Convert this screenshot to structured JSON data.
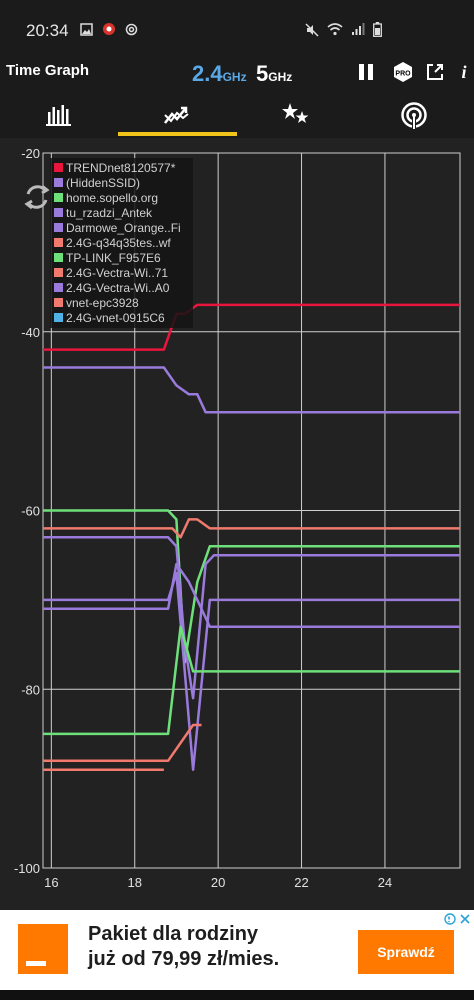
{
  "status": {
    "time": "20:34"
  },
  "app": {
    "title": "Time Graph",
    "band_24": "2.4",
    "band_5": "5",
    "ghz": "GHz"
  },
  "tabs": [
    {
      "name": "channel-graph",
      "icon": "bar-chart-icon"
    },
    {
      "name": "time-graph",
      "icon": "trend-line-icon"
    },
    {
      "name": "channel-rating",
      "icon": "stars-icon"
    },
    {
      "name": "signal-meter",
      "icon": "wifi-signal-icon"
    }
  ],
  "chart_data": {
    "type": "line",
    "xlim": [
      15.8,
      25.8
    ],
    "ylim": [
      -100,
      -20
    ],
    "x_ticks": [
      16,
      18,
      20,
      22,
      24
    ],
    "y_ticks": [
      -20,
      -40,
      -60,
      -80,
      -100
    ],
    "x_tick_labels": [
      "16",
      "18",
      "20",
      "22",
      "24"
    ],
    "y_tick_labels": [
      "-20",
      "-40",
      "-60",
      "-80",
      "-100"
    ],
    "grid": true,
    "legend_position": "top-left",
    "series": [
      {
        "name": "TRENDnet8120577*",
        "color": "#e8153c",
        "points": [
          [
            15.8,
            -42
          ],
          [
            18.7,
            -42
          ],
          [
            19.0,
            -38
          ],
          [
            19.2,
            -38
          ],
          [
            19.5,
            -37
          ],
          [
            25.8,
            -37
          ]
        ]
      },
      {
        "name": "(HiddenSSID)",
        "color": "#9a7bdc",
        "points": [
          [
            15.8,
            -44
          ],
          [
            18.7,
            -44
          ],
          [
            19.0,
            -46
          ],
          [
            19.3,
            -47
          ],
          [
            19.5,
            -47
          ],
          [
            19.7,
            -49
          ],
          [
            25.8,
            -49
          ]
        ]
      },
      {
        "name": "home.sopello.org",
        "color": "#6ee07a",
        "points": [
          [
            15.8,
            -60
          ],
          [
            18.8,
            -60
          ],
          [
            19.0,
            -61
          ],
          [
            19.2,
            -77
          ],
          [
            19.5,
            -68
          ],
          [
            19.8,
            -64
          ],
          [
            25.8,
            -64
          ]
        ]
      },
      {
        "name": "tu_rzadzi_Antek",
        "color": "#9a7bdc",
        "points": [
          [
            15.8,
            -63
          ],
          [
            18.8,
            -63
          ],
          [
            19.0,
            -64
          ],
          [
            19.2,
            -75
          ],
          [
            19.4,
            -81
          ],
          [
            19.7,
            -66
          ],
          [
            19.9,
            -65
          ],
          [
            25.8,
            -65
          ]
        ]
      },
      {
        "name": "Darmowe_Orange..Fi",
        "color": "#9a7bdc",
        "points": [
          [
            15.8,
            -70
          ],
          [
            18.8,
            -70
          ],
          [
            19.0,
            -67
          ],
          [
            19.4,
            -89
          ],
          [
            19.8,
            -70
          ],
          [
            25.8,
            -70
          ]
        ]
      },
      {
        "name": "2.4G-q34q35tes..wf",
        "color": "#f07a6e",
        "points": [
          [
            15.8,
            -62
          ],
          [
            18.9,
            -62
          ],
          [
            19.1,
            -63
          ],
          [
            19.3,
            -61
          ],
          [
            19.5,
            -61
          ],
          [
            19.8,
            -62
          ],
          [
            25.8,
            -62
          ]
        ]
      },
      {
        "name": "TP-LINK_F957E6",
        "color": "#6ee07a",
        "points": [
          [
            15.8,
            -85
          ],
          [
            18.8,
            -85
          ],
          [
            19.1,
            -73
          ],
          [
            19.4,
            -78
          ],
          [
            25.8,
            -78
          ]
        ]
      },
      {
        "name": "2.4G-Vectra-Wi..71",
        "color": "#f07a6e",
        "points": [
          [
            15.8,
            -88
          ],
          [
            18.8,
            -88
          ],
          [
            19.1,
            -86
          ],
          [
            19.4,
            -84
          ],
          [
            19.6,
            -84
          ]
        ]
      },
      {
        "name": "2.4G-Vectra-Wi..A0",
        "color": "#9a7bdc",
        "points": [
          [
            15.8,
            -71
          ],
          [
            18.8,
            -71
          ],
          [
            19.0,
            -66
          ],
          [
            19.3,
            -68
          ],
          [
            19.5,
            -70
          ],
          [
            19.8,
            -73
          ],
          [
            25.8,
            -73
          ]
        ]
      },
      {
        "name": "vnet-epc3928",
        "color": "#f07a6e",
        "points": [
          [
            15.8,
            -89
          ],
          [
            18.7,
            -89
          ]
        ]
      },
      {
        "name": "2.4G-vnet-0915C6",
        "color": "#4fb3e8",
        "points": []
      }
    ]
  },
  "ad": {
    "line1": "Pakiet dla rodziny",
    "line2": "już od 79,99 zł/mies.",
    "cta": "Sprawdź",
    "brand_color": "#ff7900"
  }
}
